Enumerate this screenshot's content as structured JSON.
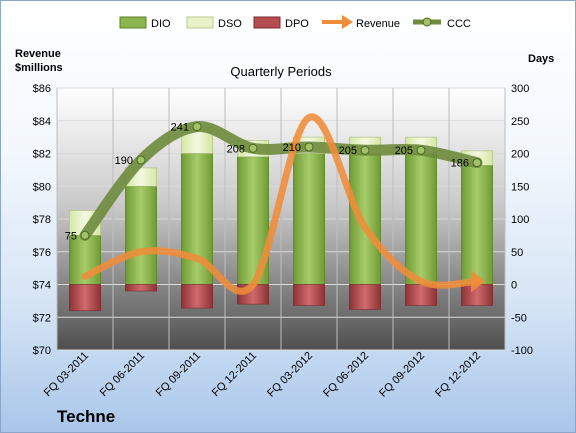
{
  "company": "Techne",
  "chart_data": {
    "type": "bar",
    "title": "Quarterly Periods",
    "ylabel_left": "Revenue\n$millions",
    "ylabel_right": "Days",
    "categories": [
      "FQ 03-2011",
      "FQ 06-2011",
      "FQ 09-2011",
      "FQ 12-2011",
      "FQ 03-2012",
      "FQ 06-2012",
      "FQ 09-2012",
      "FQ 12-2012"
    ],
    "ylim_left": [
      70,
      86
    ],
    "yticks_left": [
      "$70",
      "$72",
      "$74",
      "$76",
      "$78",
      "$80",
      "$82",
      "$84",
      "$86"
    ],
    "ylim_right": [
      -100,
      300
    ],
    "yticks_right": [
      "-100",
      "-50",
      "0",
      "50",
      "100",
      "150",
      "200",
      "250",
      "300"
    ],
    "legend_position": "top",
    "series": [
      {
        "name": "DIO",
        "axis": "right",
        "kind": "stacked-bar",
        "color": "#8cb54e",
        "values": [
          75,
          150,
          200,
          195,
          200,
          200,
          200,
          182
        ]
      },
      {
        "name": "DSO",
        "axis": "right",
        "kind": "stacked-bar",
        "color": "#e8f2c8",
        "values": [
          38,
          28,
          40,
          25,
          25,
          25,
          25,
          22
        ]
      },
      {
        "name": "DPO",
        "axis": "right",
        "kind": "negative-bar",
        "color": "#b44d4f",
        "values": [
          -40,
          -10,
          -36,
          -30,
          -32,
          -38,
          -32,
          -32
        ]
      },
      {
        "name": "Revenue",
        "axis": "left",
        "kind": "line",
        "color": "#f08c3a",
        "values": [
          74.5,
          76.0,
          75.6,
          74.0,
          84.2,
          77.5,
          74.2,
          74.2
        ]
      },
      {
        "name": "CCC",
        "axis": "right",
        "kind": "line",
        "color": "#6e8b3d",
        "values": [
          75,
          190,
          241,
          208,
          210,
          205,
          205,
          186
        ],
        "labels": [
          "75",
          "190",
          "241",
          "208",
          "210",
          "205",
          "205",
          "186"
        ]
      }
    ]
  }
}
